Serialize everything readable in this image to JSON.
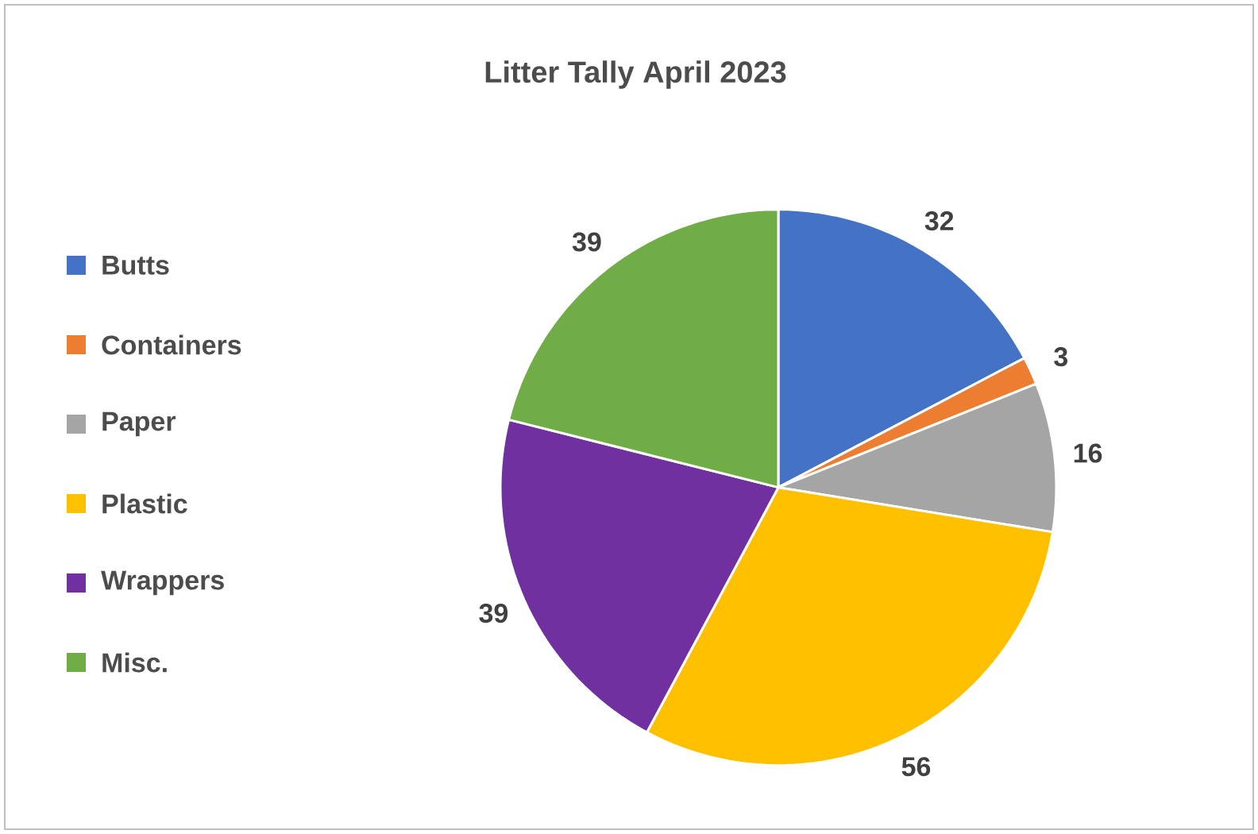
{
  "chart_data": {
    "type": "pie",
    "title": "Litter Tally April 2023",
    "categories": [
      "Butts",
      "Containers",
      "Paper",
      "Plastic",
      "Wrappers",
      "Misc."
    ],
    "values": [
      32,
      3,
      16,
      56,
      39,
      39
    ],
    "colors": [
      "#4472c4",
      "#ed7d31",
      "#a5a5a5",
      "#ffc000",
      "#7030a0",
      "#70ad47"
    ],
    "data_labels": true,
    "legend": "left"
  }
}
